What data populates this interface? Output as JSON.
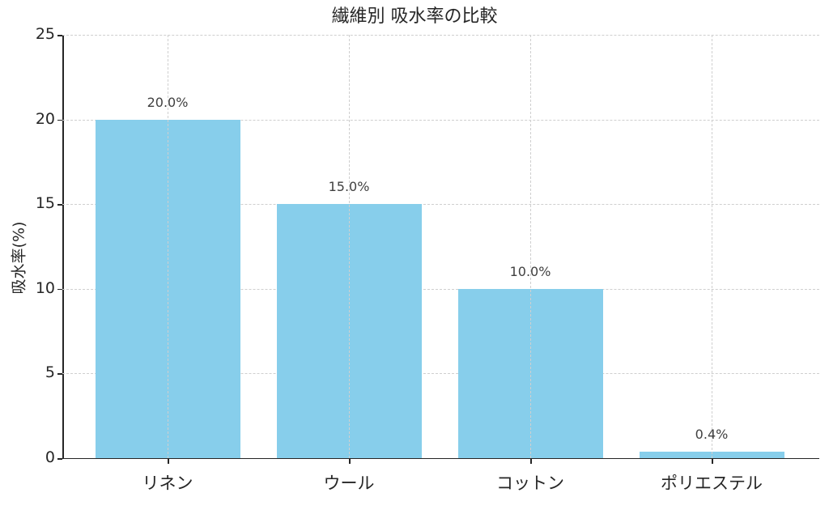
{
  "chart_data": {
    "type": "bar",
    "title": "繊維別 吸水率の比較",
    "xlabel": "",
    "ylabel": "吸水率(%)",
    "categories": [
      "リネン",
      "ウール",
      "コットン",
      "ポリエステル"
    ],
    "values": [
      20.0,
      15.0,
      10.0,
      0.4
    ],
    "data_labels": [
      "20.0%",
      "15.0%",
      "10.0%",
      "0.4%"
    ],
    "ylim": [
      0,
      25
    ],
    "yticks": [
      0,
      5,
      10,
      15,
      20,
      25
    ],
    "ytick_labels": [
      "0",
      "5",
      "10",
      "15",
      "20",
      "25"
    ],
    "grid": true,
    "legend": null,
    "bar_color": "#87ceeb"
  }
}
